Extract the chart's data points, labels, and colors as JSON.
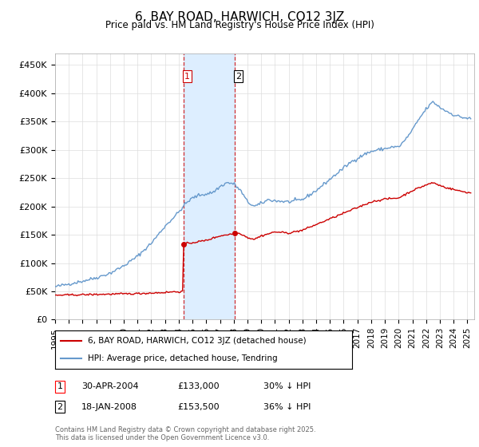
{
  "title": "6, BAY ROAD, HARWICH, CO12 3JZ",
  "subtitle": "Price paid vs. HM Land Registry's House Price Index (HPI)",
  "ylabel_ticks": [
    "£0",
    "£50K",
    "£100K",
    "£150K",
    "£200K",
    "£250K",
    "£300K",
    "£350K",
    "£400K",
    "£450K"
  ],
  "ytick_vals": [
    0,
    50000,
    100000,
    150000,
    200000,
    250000,
    300000,
    350000,
    400000,
    450000
  ],
  "ylim": [
    0,
    470000
  ],
  "xlim_start": 1995.0,
  "xlim_end": 2025.5,
  "hpi_color": "#6699cc",
  "price_color": "#cc0000",
  "shade_color": "#ddeeff",
  "transaction1_date": 2004.33,
  "transaction2_date": 2008.05,
  "transaction1_price": 133000,
  "transaction2_price": 153500,
  "legend_line1": "6, BAY ROAD, HARWICH, CO12 3JZ (detached house)",
  "legend_line2": "HPI: Average price, detached house, Tendring",
  "table_row1_num": "1",
  "table_row1_date": "30-APR-2004",
  "table_row1_price": "£133,000",
  "table_row1_hpi": "30% ↓ HPI",
  "table_row2_num": "2",
  "table_row2_date": "18-JAN-2008",
  "table_row2_price": "£153,500",
  "table_row2_hpi": "36% ↓ HPI",
  "footnote": "Contains HM Land Registry data © Crown copyright and database right 2025.\nThis data is licensed under the Open Government Licence v3.0.",
  "background_color": "#ffffff",
  "grid_color": "#dddddd",
  "hpi_anchors_t": [
    1995.0,
    1996.0,
    1997.0,
    1998.0,
    1999.0,
    2000.0,
    2001.0,
    2002.0,
    2003.0,
    2004.0,
    2004.5,
    2005.0,
    2005.5,
    2006.0,
    2006.5,
    2007.0,
    2007.5,
    2008.0,
    2008.5,
    2009.0,
    2009.5,
    2010.0,
    2010.5,
    2011.0,
    2012.0,
    2013.0,
    2014.0,
    2015.0,
    2016.0,
    2016.5,
    2017.0,
    2017.5,
    2018.0,
    2018.5,
    2019.0,
    2019.5,
    2020.0,
    2020.5,
    2021.0,
    2021.5,
    2022.0,
    2022.5,
    2023.0,
    2023.5,
    2024.0,
    2024.5,
    2025.2
  ],
  "hpi_anchors_v": [
    58000,
    63000,
    68000,
    74000,
    82000,
    95000,
    112000,
    135000,
    165000,
    190000,
    205000,
    215000,
    220000,
    222000,
    225000,
    235000,
    242000,
    240000,
    228000,
    208000,
    200000,
    205000,
    212000,
    210000,
    208000,
    212000,
    228000,
    248000,
    268000,
    278000,
    285000,
    292000,
    297000,
    300000,
    302000,
    305000,
    305000,
    318000,
    335000,
    355000,
    372000,
    385000,
    375000,
    368000,
    362000,
    358000,
    355000
  ],
  "price_anchors_t": [
    1995.0,
    1996.0,
    1997.0,
    1998.0,
    1999.0,
    2000.0,
    2001.0,
    2002.0,
    2003.0,
    2003.5,
    2004.32,
    2004.34,
    2004.5,
    2005.0,
    2006.0,
    2007.0,
    2008.04,
    2008.06,
    2008.5,
    2009.0,
    2009.5,
    2010.0,
    2011.0,
    2012.0,
    2013.0,
    2014.0,
    2015.0,
    2016.0,
    2017.0,
    2018.0,
    2019.0,
    2020.0,
    2021.0,
    2022.0,
    2022.5,
    2023.0,
    2023.5,
    2024.0,
    2024.5,
    2025.2
  ],
  "price_anchors_v": [
    43000,
    43500,
    44000,
    44500,
    45000,
    45500,
    46000,
    47000,
    48000,
    49000,
    49500,
    133000,
    134000,
    136000,
    140000,
    148000,
    152000,
    153500,
    152000,
    145000,
    142000,
    148000,
    155000,
    153000,
    158000,
    168000,
    178000,
    188000,
    198000,
    208000,
    213000,
    215000,
    228000,
    238000,
    242000,
    237000,
    233000,
    230000,
    227000,
    224000
  ]
}
